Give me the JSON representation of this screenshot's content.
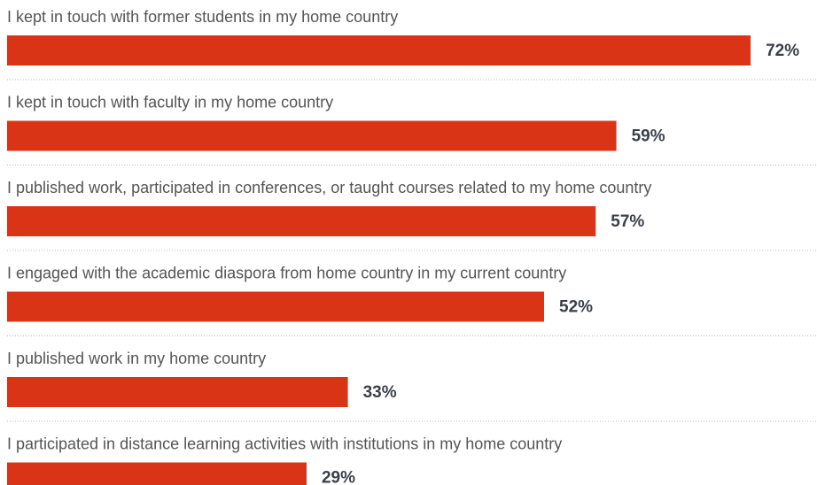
{
  "chart_data": {
    "type": "bar",
    "orientation": "horizontal",
    "categories": [
      "I kept in touch with former students in my home country",
      "I kept in touch with faculty in my home country",
      "I published work, participated in conferences, or taught courses related to my home country",
      "I engaged with the academic diaspora from home country in my current country",
      "I published work in my home country",
      "I participated in distance learning activities with institutions in my home country"
    ],
    "values": [
      72,
      59,
      57,
      52,
      33,
      29
    ],
    "value_labels": [
      "72%",
      "59%",
      "57%",
      "52%",
      "33%",
      "29%"
    ],
    "color": "#d93415",
    "xlim": [
      0,
      78
    ]
  }
}
